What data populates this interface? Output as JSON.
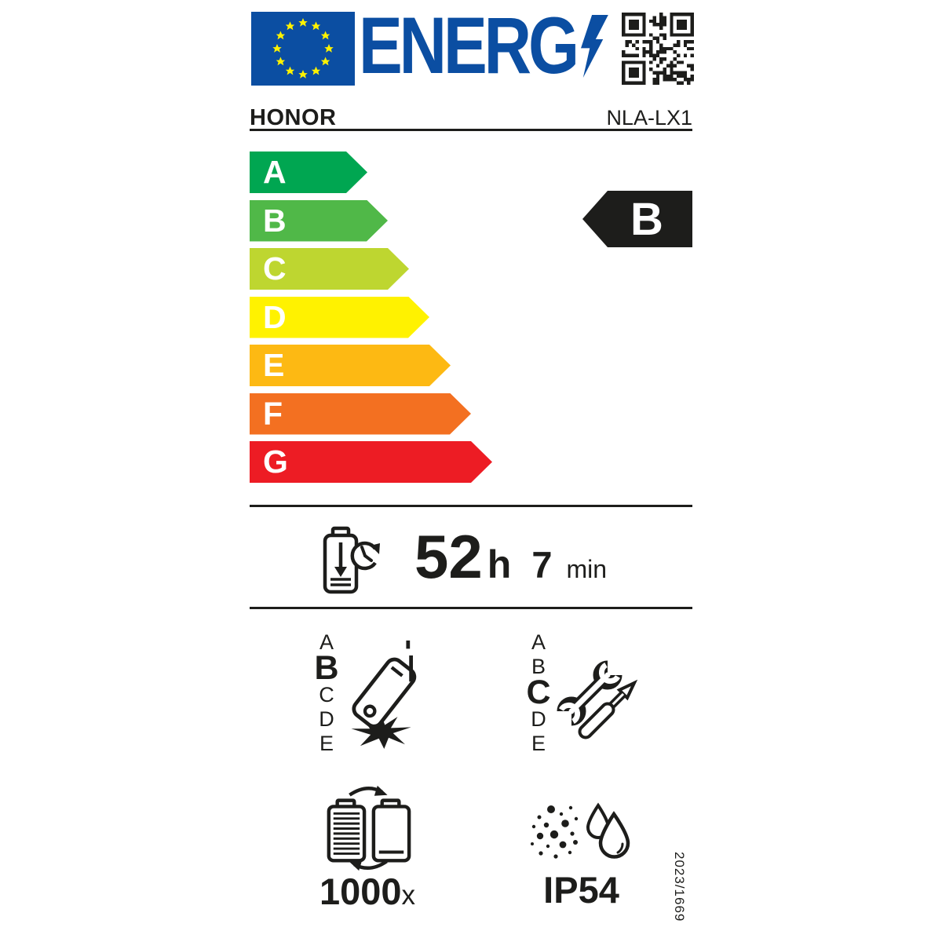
{
  "header": {
    "energy_logo_text": "ENERG",
    "brand": "HONOR",
    "model": "NLA-LX1"
  },
  "colors": {
    "eu_blue": "#0B4EA2",
    "star_yellow": "#FFF200",
    "ink": "#1D1D1B",
    "rating_arrow_bg": "#1D1D1B",
    "rating_text": "#FFFFFF"
  },
  "energy_scale": {
    "rating": "B",
    "classes": [
      {
        "label": "A",
        "color": "#00A651"
      },
      {
        "label": "B",
        "color": "#50B848"
      },
      {
        "label": "C",
        "color": "#BED630"
      },
      {
        "label": "D",
        "color": "#FFF200"
      },
      {
        "label": "E",
        "color": "#FDB913"
      },
      {
        "label": "F",
        "color": "#F37021"
      },
      {
        "label": "G",
        "color": "#ED1C24"
      }
    ]
  },
  "battery_endurance": {
    "hours": "52",
    "hours_unit": "h",
    "minutes": "7",
    "minutes_unit": "min"
  },
  "drop_reliability": {
    "rating": "B",
    "scale": [
      "A",
      "B",
      "C",
      "D",
      "E"
    ]
  },
  "repairability": {
    "rating": "C",
    "scale": [
      "A",
      "B",
      "C",
      "D",
      "E"
    ]
  },
  "battery_cycles": {
    "value": "1000",
    "unit": "x"
  },
  "ingress_protection": {
    "rating": "IP54"
  },
  "regulation_number": "2023/1669",
  "icons": [
    "eu-flag",
    "lightning-bolt-icon",
    "qr-code",
    "battery-endurance-icon",
    "phone-drop-icon",
    "repair-tools-icon",
    "battery-cycle-icon",
    "dust-and-water-icon"
  ]
}
